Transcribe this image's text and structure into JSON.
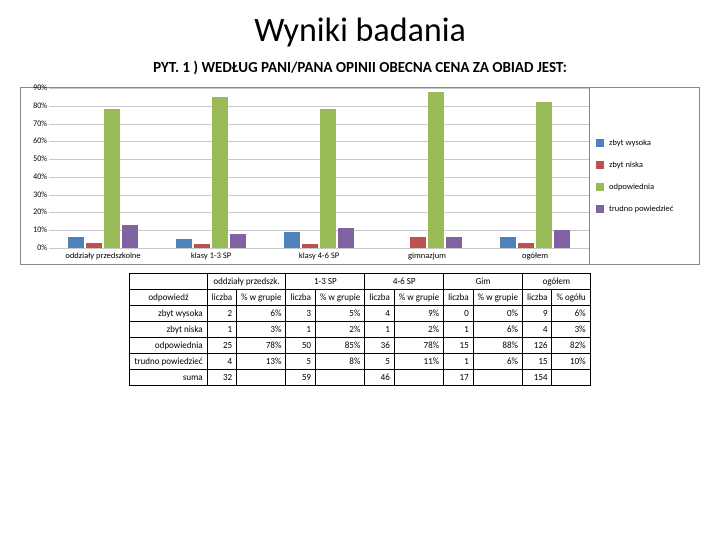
{
  "title": "Wyniki badania",
  "question": "PYT. 1 ) WEDŁUG PANI/PANA OPINII OBECNA CENA ZA OBIAD JEST:",
  "chart": {
    "type": "bar",
    "ymax": 90,
    "ytick_step": 10,
    "background_color": "#ffffff",
    "grid_color": "#c8c8c8",
    "label_fontsize": 8,
    "series": [
      {
        "name": "zbyt wysoka",
        "color": "#4f81bd"
      },
      {
        "name": "zbyt niska",
        "color": "#c0504d"
      },
      {
        "name": "odpowiednia",
        "color": "#9bbb59"
      },
      {
        "name": "trudno powiedzieć",
        "color": "#8064a2"
      }
    ],
    "categories": [
      {
        "label": "oddziały przedszkolne",
        "values": [
          6,
          3,
          78,
          13
        ]
      },
      {
        "label": "klasy 1-3 SP",
        "values": [
          5,
          2,
          85,
          8
        ]
      },
      {
        "label": "klasy 4-6 SP",
        "values": [
          9,
          2,
          78,
          11
        ]
      },
      {
        "label": "gimnazjum",
        "values": [
          0,
          6,
          88,
          6
        ]
      },
      {
        "label": "ogółem",
        "values": [
          6,
          3,
          82,
          10
        ]
      }
    ]
  },
  "table": {
    "row_header": "odpowiedź",
    "group_headers": [
      "oddziały przedszk.",
      "1-3 SP",
      "4-6 SP",
      "Gim",
      "ogółem"
    ],
    "sub_headers": {
      "count": "liczba",
      "pct": "% w grupie",
      "pct_total": "% ogółu"
    },
    "rows": [
      {
        "label": "zbyt wysoka",
        "cells": [
          [
            2,
            "6%"
          ],
          [
            3,
            "5%"
          ],
          [
            4,
            "9%"
          ],
          [
            0,
            "0%"
          ],
          [
            9,
            "6%"
          ]
        ]
      },
      {
        "label": "zbyt niska",
        "cells": [
          [
            1,
            "3%"
          ],
          [
            1,
            "2%"
          ],
          [
            1,
            "2%"
          ],
          [
            1,
            "6%"
          ],
          [
            4,
            "3%"
          ]
        ]
      },
      {
        "label": "odpowiednia",
        "cells": [
          [
            25,
            "78%"
          ],
          [
            50,
            "85%"
          ],
          [
            36,
            "78%"
          ],
          [
            15,
            "88%"
          ],
          [
            126,
            "82%"
          ]
        ]
      },
      {
        "label": "trudno powiedzieć",
        "cells": [
          [
            4,
            "13%"
          ],
          [
            5,
            "8%"
          ],
          [
            5,
            "11%"
          ],
          [
            1,
            "6%"
          ],
          [
            15,
            "10%"
          ]
        ]
      },
      {
        "label": "suma",
        "cells": [
          [
            32,
            ""
          ],
          [
            59,
            ""
          ],
          [
            46,
            ""
          ],
          [
            17,
            ""
          ],
          [
            154,
            ""
          ]
        ]
      }
    ]
  }
}
